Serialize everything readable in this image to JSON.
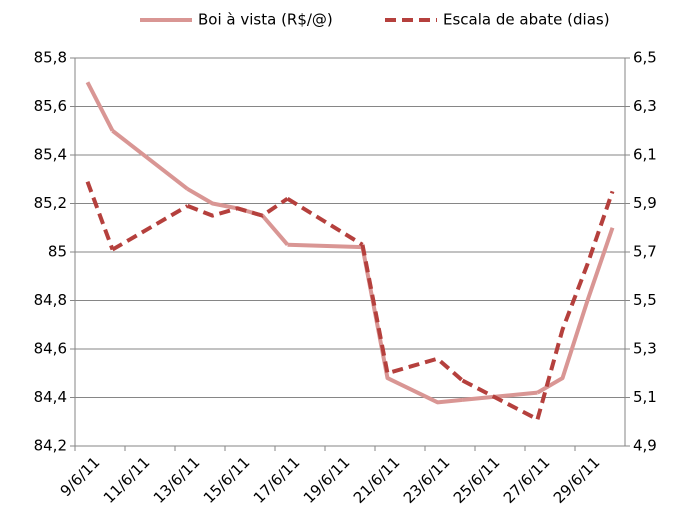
{
  "chart_data": {
    "type": "line",
    "categories": [
      "9/6/11",
      null,
      "11/6/11",
      null,
      "13/6/11",
      null,
      "15/6/11",
      null,
      "17/6/11",
      null,
      "19/6/11",
      null,
      "21/6/11",
      null,
      "23/6/11",
      null,
      "25/6/11",
      null,
      "27/6/11",
      null,
      "29/6/11",
      null
    ],
    "series": [
      {
        "name": "Boi à vista (R$/@)",
        "color": "#d99694",
        "dash": false,
        "values": [
          85.7,
          85.5,
          null,
          null,
          85.26,
          85.2,
          85.18,
          85.15,
          85.03,
          null,
          null,
          85.02,
          84.48,
          84.43,
          84.38,
          84.39,
          null,
          null,
          84.42,
          84.48,
          84.8,
          85.1
        ]
      },
      {
        "name": "Escala de abate (dias)",
        "color": "#b5403d",
        "dash": true,
        "axis": "y2",
        "values": [
          5.99,
          5.71,
          null,
          null,
          5.89,
          5.85,
          5.88,
          5.85,
          5.92,
          null,
          null,
          5.73,
          5.2,
          5.23,
          5.26,
          5.17,
          null,
          null,
          5.01,
          5.38,
          5.65,
          5.95
        ]
      }
    ],
    "ylim": [
      84.2,
      85.8
    ],
    "yticks": [
      {
        "value": 84.2,
        "label": "84,2"
      },
      {
        "value": 84.4,
        "label": "84,4"
      },
      {
        "value": 84.6,
        "label": "84,6"
      },
      {
        "value": 84.8,
        "label": "84,8"
      },
      85,
      {
        "value": 85.2,
        "label": "85,2"
      },
      {
        "value": 85.4,
        "label": "85,4"
      },
      {
        "value": 85.6,
        "label": "85,6"
      },
      {
        "value": 85.8,
        "label": "85,8"
      }
    ],
    "y2lim": [
      4.9,
      6.5
    ],
    "y2ticks": [
      {
        "value": 4.9,
        "label": "4,9"
      },
      {
        "value": 5.1,
        "label": "5,1"
      },
      {
        "value": 5.3,
        "label": "5,3"
      },
      {
        "value": 5.5,
        "label": "5,5"
      },
      {
        "value": 5.7,
        "label": "5,7"
      },
      {
        "value": 5.9,
        "label": "5,9"
      },
      {
        "value": 6.1,
        "label": "6,1"
      },
      {
        "value": 6.3,
        "label": "6,3"
      },
      {
        "value": 6.5,
        "label": "6,5"
      }
    ],
    "grid": true,
    "legend": "top"
  }
}
